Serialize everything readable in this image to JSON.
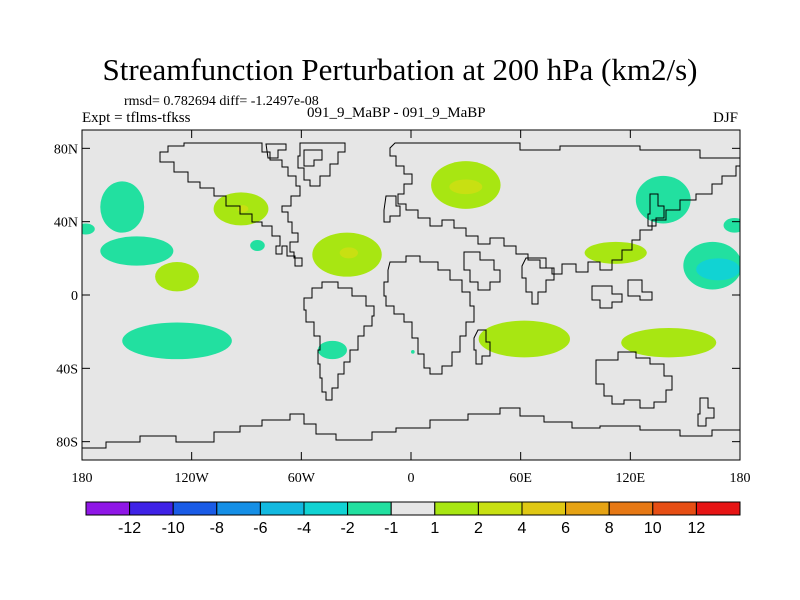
{
  "chart_data": {
    "type": "heatmap",
    "title": "Streamfunction Perturbation at 200 hPa (km2/s)",
    "stats_text": "rmsd= 0.782694  diff= -1.2497e-08",
    "left_label": "Expt = tflms-tfkss",
    "center_label": "091_9_MaBP - 091_9_MaBP",
    "right_label": "DJF",
    "xlim": [
      -180,
      180
    ],
    "ylim": [
      -90,
      90
    ],
    "x_ticks": [
      {
        "value": -180,
        "label": "180"
      },
      {
        "value": -120,
        "label": "120W"
      },
      {
        "value": -60,
        "label": "60W"
      },
      {
        "value": 0,
        "label": "0"
      },
      {
        "value": 60,
        "label": "60E"
      },
      {
        "value": 120,
        "label": "120E"
      },
      {
        "value": 180,
        "label": "180"
      }
    ],
    "y_ticks": [
      {
        "value": 80,
        "label": "80N"
      },
      {
        "value": 40,
        "label": "40N"
      },
      {
        "value": 0,
        "label": "0"
      },
      {
        "value": -40,
        "label": "40S"
      },
      {
        "value": -80,
        "label": "80S"
      }
    ],
    "colorbar": {
      "colors": [
        "#8f17e6",
        "#3f22e6",
        "#1a5be6",
        "#158fe6",
        "#13b9e0",
        "#11d3d3",
        "#22e0a0",
        "#e6e6e6",
        "#a8e612",
        "#c8e012",
        "#e0c814",
        "#e6a314",
        "#e67814",
        "#e64e14",
        "#e61414"
      ],
      "labels": [
        "-12",
        "-10",
        "-8",
        "-6",
        "-4",
        "-2",
        "-1",
        "1",
        "2",
        "4",
        "6",
        "8",
        "10",
        "12"
      ]
    },
    "anomalies": [
      {
        "lon": -158,
        "lat": 48,
        "rlon": 12,
        "rlat": 14,
        "level": -2
      },
      {
        "lon": -150,
        "lat": 24,
        "rlon": 20,
        "rlat": 8,
        "level": -2
      },
      {
        "lon": -178,
        "lat": 36,
        "rlon": 5,
        "rlat": 3,
        "level": -2
      },
      {
        "lon": -93,
        "lat": 47,
        "rlon": 15,
        "rlat": 9,
        "level": 2
      },
      {
        "lon": -92,
        "lat": 47,
        "rlon": 3,
        "rlat": 2,
        "level": 4
      },
      {
        "lon": -128,
        "lat": 10,
        "rlon": 12,
        "rlat": 8,
        "level": 2
      },
      {
        "lon": -128,
        "lat": -25,
        "rlon": 30,
        "rlat": 10,
        "level": -2
      },
      {
        "lon": -84,
        "lat": 27,
        "rlon": 4,
        "rlat": 3,
        "level": -2
      },
      {
        "lon": -35,
        "lat": 22,
        "rlon": 19,
        "rlat": 12,
        "level": 2
      },
      {
        "lon": -34,
        "lat": 23,
        "rlon": 5,
        "rlat": 3,
        "level": 4
      },
      {
        "lon": -43,
        "lat": -30,
        "rlon": 8,
        "rlat": 5,
        "level": -2
      },
      {
        "lon": 1,
        "lat": -31,
        "rlon": 1,
        "rlat": 1,
        "level": -2
      },
      {
        "lon": 30,
        "lat": 60,
        "rlon": 19,
        "rlat": 13,
        "level": 2
      },
      {
        "lon": 30,
        "lat": 59,
        "rlon": 9,
        "rlat": 4,
        "level": 4
      },
      {
        "lon": 62,
        "lat": -24,
        "rlon": 25,
        "rlat": 10,
        "level": 2
      },
      {
        "lon": 112,
        "lat": 23,
        "rlon": 17,
        "rlat": 6,
        "level": 2
      },
      {
        "lon": 141,
        "lat": -26,
        "rlon": 26,
        "rlat": 8,
        "level": 2
      },
      {
        "lon": 138,
        "lat": 52,
        "rlon": 15,
        "rlat": 13,
        "level": -2
      },
      {
        "lon": 165,
        "lat": 16,
        "rlon": 16,
        "rlat": 13,
        "level": -2
      },
      {
        "lon": 168,
        "lat": 14,
        "rlon": 12,
        "rlat": 6,
        "level": -4
      },
      {
        "lon": 177,
        "lat": 38,
        "rlon": 6,
        "rlat": 4,
        "level": -2
      }
    ]
  }
}
